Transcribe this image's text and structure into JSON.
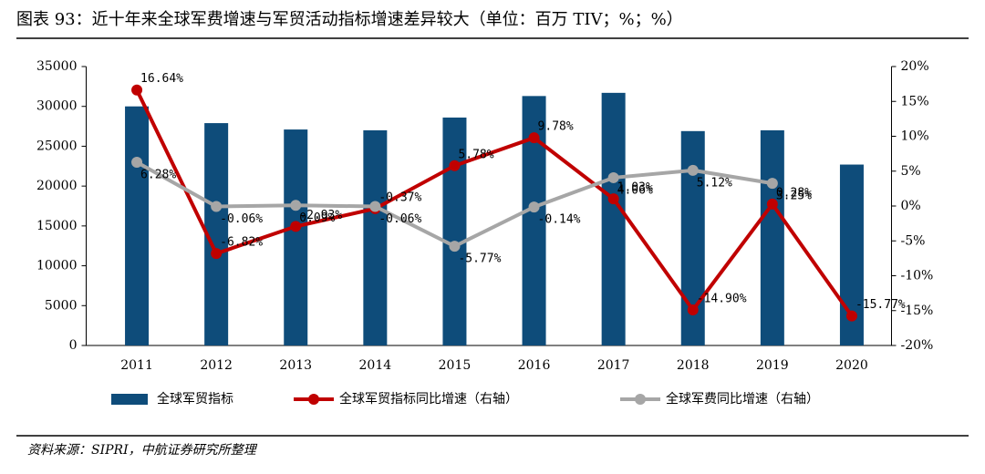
{
  "chart_data": {
    "type": "bar-line",
    "title": "图表 93：近十年来全球军费增速与军贸活动指标增速差异较大（单位：百万 TIV；%；%）",
    "source": "资料来源：SIPRI，中航证券研究所整理",
    "categories": [
      "2011",
      "2012",
      "2013",
      "2014",
      "2015",
      "2016",
      "2017",
      "2018",
      "2019",
      "2020"
    ],
    "series": [
      {
        "name": "全球军贸指标",
        "color": "#0e4c7a",
        "kind": "bar",
        "values": [
          30000,
          27900,
          27100,
          27000,
          28600,
          31300,
          31700,
          26900,
          27000,
          22700
        ]
      },
      {
        "name": "全球军贸指标同比增速（右轴）",
        "color": "#c00000",
        "kind": "line",
        "axis": "y2",
        "values": [
          16.64,
          -6.82,
          -2.93,
          -0.37,
          5.78,
          9.78,
          1.03,
          -14.9,
          0.28,
          -15.77
        ],
        "value_labels": [
          "16.64%",
          "-6.82%",
          "-2.93%",
          "-0.37%",
          "5.78%",
          "9.78%",
          "1.03%",
          "-14.90%",
          "0.28%",
          "-15.77%"
        ]
      },
      {
        "name": "全球军费同比增速（右轴）",
        "color": "#a6a6a6",
        "kind": "line",
        "axis": "y2",
        "values": [
          6.28,
          -0.06,
          0.09,
          -0.06,
          -5.77,
          -0.14,
          4.06,
          5.12,
          3.25,
          null
        ],
        "value_labels": [
          "6.28%",
          "-0.06%",
          "0.09%",
          "-0.06%",
          "-5.77%",
          "-0.14%",
          "4.06%",
          "5.12%",
          "3.25%",
          null
        ]
      }
    ],
    "ylim": [
      0,
      35000
    ],
    "yticks": [
      0,
      5000,
      10000,
      15000,
      20000,
      25000,
      30000,
      35000
    ],
    "y2lim": [
      -20,
      20
    ],
    "y2ticks": [
      {
        "value": -20,
        "label": "-20%"
      },
      {
        "value": -15,
        "label": "-15%"
      },
      {
        "value": -10,
        "label": "-10%"
      },
      {
        "value": -5,
        "label": "-5%"
      },
      {
        "value": 0,
        "label": "0%"
      },
      {
        "value": 5,
        "label": "5%"
      },
      {
        "value": 10,
        "label": "10%"
      },
      {
        "value": 15,
        "label": "15%"
      },
      {
        "value": 20,
        "label": "20%"
      }
    ],
    "grid": false
  }
}
